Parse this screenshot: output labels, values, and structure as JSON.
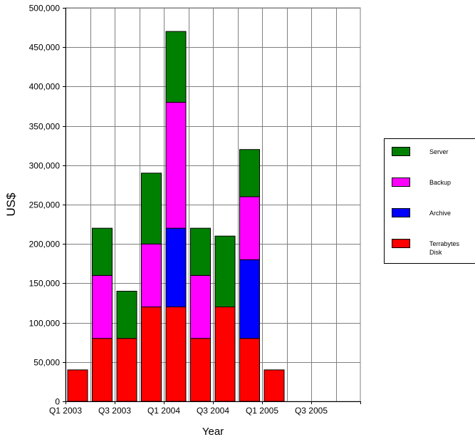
{
  "chart_data": {
    "type": "bar",
    "stacked": true,
    "categories": [
      "Q1 2003",
      "Q2 2003",
      "Q3 2003",
      "Q4 2003",
      "Q1 2004",
      "Q2 2004",
      "Q3 2004",
      "Q4 2004",
      "Q1 2005",
      "Q2 2005",
      "Q3 2005",
      "Q4 2005"
    ],
    "tick_labels": [
      "Q1 2003",
      "Q3 2003",
      "Q1 2004",
      "Q3 2004",
      "Q1 2005",
      "Q3 2005"
    ],
    "series": [
      {
        "name": "Terrabytes Disk",
        "color": "#ff0000",
        "values": [
          40000,
          80000,
          80000,
          120000,
          120000,
          80000,
          120000,
          80000,
          40000,
          0,
          0,
          0
        ]
      },
      {
        "name": "Archive",
        "color": "#0000ff",
        "values": [
          0,
          0,
          0,
          0,
          100000,
          0,
          0,
          100000,
          0,
          0,
          0,
          0
        ]
      },
      {
        "name": "Backup",
        "color": "#ff00ff",
        "values": [
          0,
          80000,
          0,
          80000,
          160000,
          80000,
          0,
          80000,
          0,
          0,
          0,
          0
        ]
      },
      {
        "name": "Server",
        "color": "#008000",
        "values": [
          0,
          60000,
          60000,
          90000,
          90000,
          60000,
          90000,
          60000,
          0,
          0,
          0,
          0
        ]
      }
    ],
    "legend_order": [
      "Server",
      "Backup",
      "Archive",
      "Terrabytes Disk"
    ],
    "xlabel": "Year",
    "ylabel": "US$",
    "ylim": [
      0,
      500000
    ],
    "ytick_step": 50000,
    "grid": true,
    "legend_position": "right"
  }
}
